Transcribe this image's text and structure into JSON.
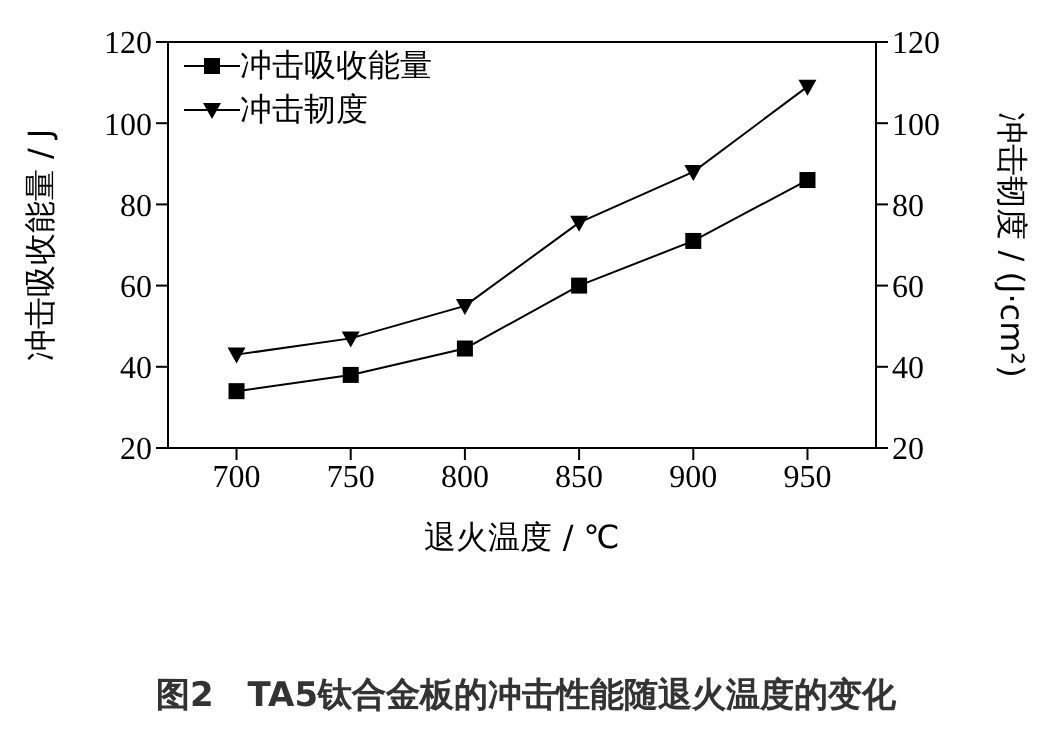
{
  "chart_data": {
    "type": "line",
    "xlabel": "退火温度 / ℃",
    "ylabel": "冲击吸收能量 / J",
    "y2label": "冲击韧度 / (J·cm²)",
    "x": [
      700,
      750,
      800,
      850,
      900,
      950
    ],
    "series": [
      {
        "name": "冲击吸收能量",
        "color": "#000000",
        "marker": "square",
        "values": [
          34,
          38,
          44.5,
          60,
          71,
          86
        ]
      },
      {
        "name": "冲击韧度",
        "color": "#000000",
        "marker": "triangle",
        "axis": "y2",
        "values": [
          43,
          47,
          55,
          75.5,
          88,
          109
        ]
      }
    ],
    "xlim": [
      670,
      980
    ],
    "xticks": [
      700,
      750,
      800,
      850,
      900,
      950
    ],
    "ylim": [
      20,
      120
    ],
    "yticks": [
      20,
      40,
      60,
      80,
      100,
      120
    ],
    "y2lim": [
      20,
      120
    ],
    "y2ticks": [
      20,
      40,
      60,
      80,
      100,
      120
    ],
    "legend": "top left",
    "grid": false,
    "line_style": "solid",
    "annotations": [
      "图2　TA5钛合金板的冲击性能随退火温度的变化"
    ]
  }
}
